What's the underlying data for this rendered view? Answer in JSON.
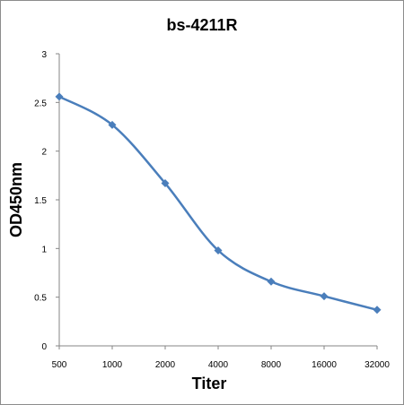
{
  "chart_data": {
    "type": "line",
    "title": "bs-4211R",
    "xlabel": "Titer",
    "ylabel": "OD450nm",
    "categories": [
      "500",
      "1000",
      "2000",
      "4000",
      "8000",
      "16000",
      "32000"
    ],
    "series": [
      {
        "values": [
          2.56,
          2.27,
          1.67,
          0.98,
          0.66,
          0.51,
          0.37
        ]
      }
    ],
    "ylim": [
      0,
      3
    ],
    "yticks": [
      "0",
      "0.5",
      "1",
      "1.5",
      "2",
      "2.5",
      "3"
    ],
    "grid": false,
    "legend": "none",
    "line_color": "#4a7ebb",
    "marker": "diamond"
  }
}
